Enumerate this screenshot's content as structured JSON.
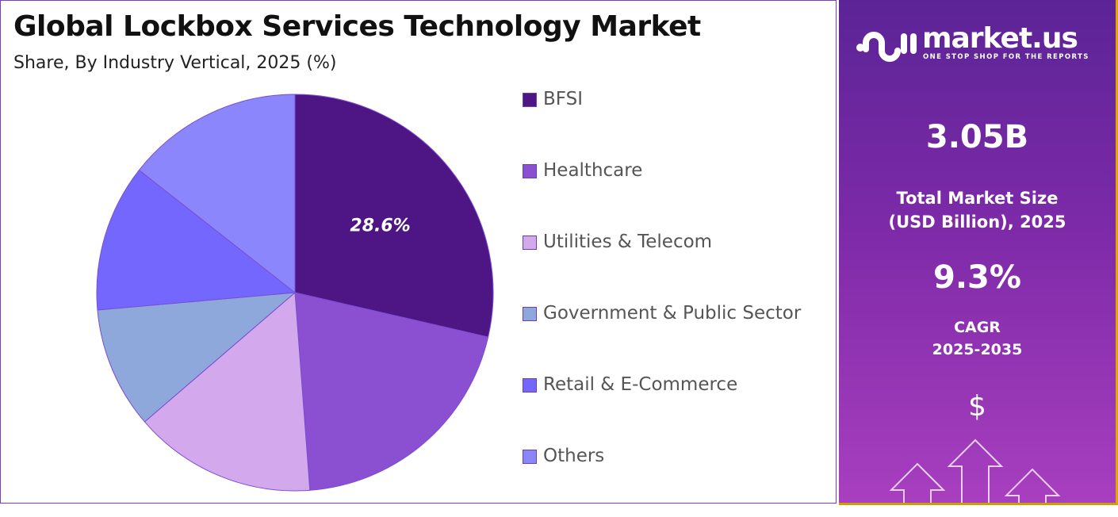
{
  "chart_data": {
    "type": "pie",
    "title": "Global Lockbox Services Technology Market",
    "subtitle": "Share, By Industry Vertical, 2025 (%)",
    "legend_position": "right",
    "slices": [
      {
        "label": "BFSI",
        "value": 28.6,
        "color": "#4e1585",
        "show_label": true,
        "data_label": "28.6%"
      },
      {
        "label": "Healthcare",
        "value": 20.2,
        "color": "#8b4fd1"
      },
      {
        "label": "Utilities & Telecom",
        "value": 14.9,
        "color": "#d3a8ec"
      },
      {
        "label": "Government & Public Sector",
        "value": 9.9,
        "color": "#8ea8dc"
      },
      {
        "label": "Retail & E-Commerce",
        "value": 12.0,
        "color": "#7467fd"
      },
      {
        "label": "Others",
        "value": 14.4,
        "color": "#8c86fd"
      }
    ]
  },
  "sidebar": {
    "brand": "market.us",
    "tagline": "ONE STOP SHOP FOR THE REPORTS",
    "market_size": "3.05B",
    "market_size_label_1": "Total Market Size",
    "market_size_label_2": "(USD Billion), 2025",
    "cagr": "9.3%",
    "cagr_label_1": "CAGR",
    "cagr_label_2": "2025-2035",
    "dollar": "$"
  }
}
